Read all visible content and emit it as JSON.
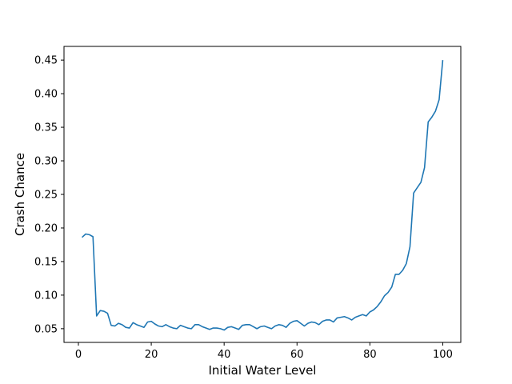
{
  "chart_data": {
    "type": "line",
    "title": "",
    "xlabel": "Initial Water Level",
    "ylabel": "Crash Chance",
    "xlim": [
      -3.95,
      104.95
    ],
    "ylim": [
      0.0296,
      0.4704
    ],
    "xticks": [
      0,
      20,
      40,
      60,
      80,
      100
    ],
    "xtick_labels": [
      "0",
      "20",
      "40",
      "60",
      "80",
      "100"
    ],
    "yticks": [
      0.05,
      0.1,
      0.15,
      0.2,
      0.25,
      0.3,
      0.35,
      0.4,
      0.45
    ],
    "ytick_labels": [
      "0.05",
      "0.10",
      "0.15",
      "0.20",
      "0.25",
      "0.30",
      "0.35",
      "0.40",
      "0.45"
    ],
    "grid": false,
    "legend": "none",
    "series": [
      {
        "name": "Crash Chance",
        "color": "#1f77b4",
        "x": [
          1,
          2,
          3,
          4,
          5,
          6,
          7,
          8,
          9,
          10,
          11,
          12,
          13,
          14,
          15,
          16,
          17,
          18,
          19,
          20,
          21,
          22,
          23,
          24,
          25,
          26,
          27,
          28,
          29,
          30,
          31,
          32,
          33,
          34,
          35,
          36,
          37,
          38,
          39,
          40,
          41,
          42,
          43,
          44,
          45,
          46,
          47,
          48,
          49,
          50,
          51,
          52,
          53,
          54,
          55,
          56,
          57,
          58,
          59,
          60,
          61,
          62,
          63,
          64,
          65,
          66,
          67,
          68,
          69,
          70,
          71,
          72,
          73,
          74,
          75,
          76,
          77,
          78,
          79,
          80,
          81,
          82,
          83,
          84,
          85,
          86,
          87,
          88,
          89,
          90,
          91,
          92,
          93,
          94,
          95,
          96,
          97,
          98,
          99,
          100
        ],
        "y": [
          0.186,
          0.191,
          0.19,
          0.187,
          0.069,
          0.077,
          0.076,
          0.073,
          0.055,
          0.054,
          0.058,
          0.056,
          0.052,
          0.051,
          0.059,
          0.056,
          0.054,
          0.052,
          0.06,
          0.061,
          0.057,
          0.054,
          0.053,
          0.056,
          0.053,
          0.051,
          0.05,
          0.055,
          0.053,
          0.051,
          0.05,
          0.056,
          0.056,
          0.053,
          0.051,
          0.049,
          0.051,
          0.051,
          0.05,
          0.048,
          0.052,
          0.053,
          0.051,
          0.049,
          0.055,
          0.056,
          0.056,
          0.053,
          0.05,
          0.053,
          0.054,
          0.052,
          0.05,
          0.054,
          0.056,
          0.055,
          0.052,
          0.058,
          0.061,
          0.062,
          0.058,
          0.054,
          0.058,
          0.06,
          0.059,
          0.056,
          0.061,
          0.063,
          0.063,
          0.06,
          0.066,
          0.067,
          0.068,
          0.066,
          0.063,
          0.067,
          0.069,
          0.071,
          0.069,
          0.075,
          0.078,
          0.083,
          0.09,
          0.099,
          0.104,
          0.112,
          0.131,
          0.131,
          0.137,
          0.147,
          0.172,
          0.252,
          0.26,
          0.268,
          0.29,
          0.358,
          0.365,
          0.374,
          0.391,
          0.45
        ]
      }
    ]
  }
}
